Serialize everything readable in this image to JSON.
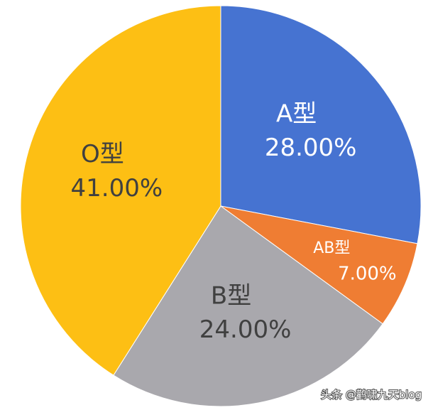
{
  "chart_data": {
    "type": "pie",
    "categories": [
      "A型",
      "AB型",
      "B型",
      "O型"
    ],
    "values": [
      28,
      7,
      24,
      41
    ],
    "value_labels": [
      "28.00%",
      "7.00%",
      "24.00%",
      "41.00%"
    ],
    "colors": [
      "#4673d1",
      "#ef7d33",
      "#a9a8ad",
      "#fdbf14"
    ],
    "label_colors": [
      "#ffffff",
      "#ffffff",
      "#404040",
      "#404040"
    ]
  },
  "watermark": "头条 @鹳啸九天blog"
}
